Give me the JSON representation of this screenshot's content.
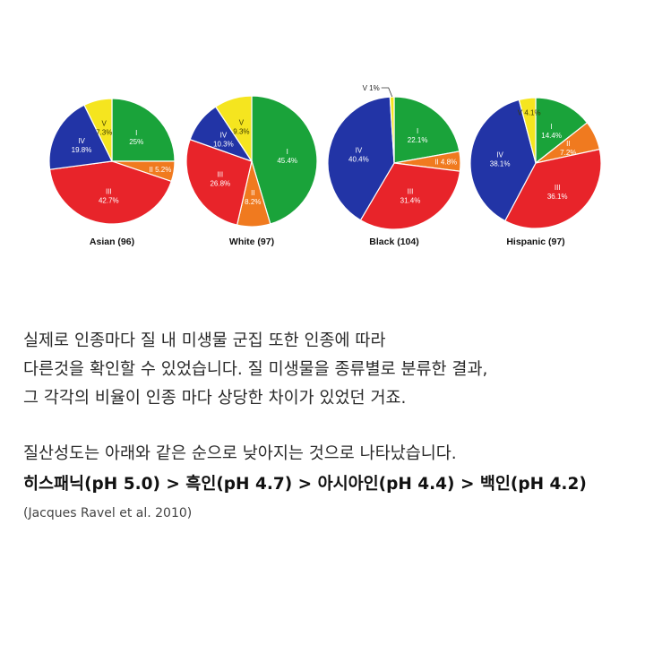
{
  "colors": {
    "I": "#1aa33a",
    "II": "#f07a1f",
    "III": "#e8242a",
    "IV": "#2234a6",
    "V": "#f5e51f"
  },
  "chart_data": [
    {
      "type": "pie",
      "title": "Asian (96)",
      "slices": [
        {
          "name": "I",
          "value": 25,
          "label": "25%"
        },
        {
          "name": "II",
          "value": 5.2,
          "label": "5.2%"
        },
        {
          "name": "III",
          "value": 42.7,
          "label": "42.7%"
        },
        {
          "name": "IV",
          "value": 19.8,
          "label": "19.8%"
        },
        {
          "name": "V",
          "value": 7.3,
          "label": "7.3%"
        }
      ]
    },
    {
      "type": "pie",
      "title": "White (97)",
      "slices": [
        {
          "name": "I",
          "value": 45.4,
          "label": "45.4%"
        },
        {
          "name": "II",
          "value": 8.2,
          "label": "8.2%"
        },
        {
          "name": "III",
          "value": 26.8,
          "label": "26.8%"
        },
        {
          "name": "IV",
          "value": 10.3,
          "label": "10.3%"
        },
        {
          "name": "V",
          "value": 9.3,
          "label": "9.3%"
        }
      ]
    },
    {
      "type": "pie",
      "title": "Black (104)",
      "slices": [
        {
          "name": "I",
          "value": 22.1,
          "label": "22.1%"
        },
        {
          "name": "II",
          "value": 4.8,
          "label": "4.8%"
        },
        {
          "name": "III",
          "value": 31.4,
          "label": "31.4%"
        },
        {
          "name": "IV",
          "value": 40.4,
          "label": "40.4%"
        },
        {
          "name": "V",
          "value": 1,
          "label": "1%"
        }
      ]
    },
    {
      "type": "pie",
      "title": "Hispanic (97)",
      "slices": [
        {
          "name": "I",
          "value": 14.4,
          "label": "14.4%"
        },
        {
          "name": "II",
          "value": 7.2,
          "label": "7.2%"
        },
        {
          "name": "III",
          "value": 36.1,
          "label": "36.1%"
        },
        {
          "name": "IV",
          "value": 38.1,
          "label": "38.1%"
        },
        {
          "name": "V",
          "value": 4.1,
          "label": "4.1%"
        }
      ]
    }
  ],
  "text": {
    "para1": [
      "실제로 인종마다 질 내 미생물 군집 또한 인종에 따라",
      "다른것을 확인할 수 있었습니다. 질 미생물을 종류별로 분류한 결과,",
      "그 각각의 비율이 인종 마다 상당한 차이가 있었던 거죠."
    ],
    "para2": "질산성도는 아래와 같은 순으로 낮아지는 것으로 나타났습니다.",
    "ranking": "히스패닉(pH 5.0) > 흑인(pH 4.7) > 아시아인(pH 4.4) > 백인(pH 4.2)",
    "citation": "(Jacques Ravel et al. 2010)"
  }
}
